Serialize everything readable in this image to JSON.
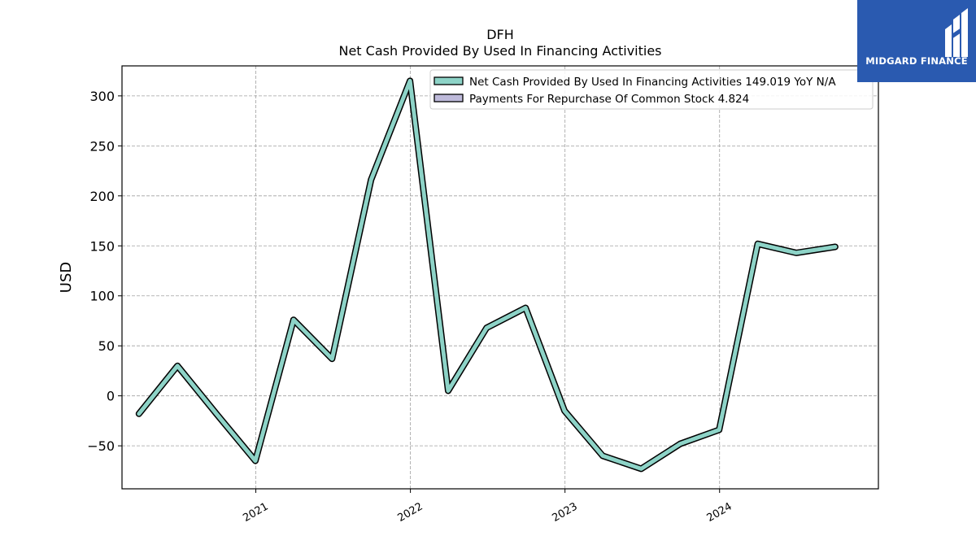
{
  "chart_data": {
    "type": "line",
    "ticker": "DFH",
    "title": "Net Cash Provided By Used In Financing Activities",
    "xlabel": "",
    "ylabel": "USD",
    "ylim": [
      -93,
      330
    ],
    "yticks": [
      -50,
      0,
      50,
      100,
      150,
      200,
      250,
      300
    ],
    "ytick_labels": [
      "−50",
      "0",
      "50",
      "100",
      "150",
      "200",
      "250",
      "300"
    ],
    "xticks": [
      {
        "date": "2021-01-01",
        "label": "2021"
      },
      {
        "date": "2022-01-01",
        "label": "2022"
      },
      {
        "date": "2023-01-01",
        "label": "2023"
      },
      {
        "date": "2024-01-01",
        "label": "2024"
      }
    ],
    "xlim": [
      "2020-02-20",
      "2025-01-10"
    ],
    "grid": true,
    "legend_position": "top-right",
    "series": [
      {
        "name": "Net Cash Provided By Used In Financing Activities",
        "legend_label": "Net Cash Provided By Used In Financing Activities  149.019 YoY N/A",
        "color": "#8dd3c7",
        "points": [
          {
            "x": "2020-03-31",
            "y": -18
          },
          {
            "x": "2020-06-30",
            "y": 30
          },
          {
            "x": "2020-09-30",
            "y": -18
          },
          {
            "x": "2020-12-31",
            "y": -65
          },
          {
            "x": "2021-03-31",
            "y": 76
          },
          {
            "x": "2021-06-30",
            "y": 37
          },
          {
            "x": "2021-09-30",
            "y": 216
          },
          {
            "x": "2021-12-31",
            "y": 315
          },
          {
            "x": "2022-03-31",
            "y": 5
          },
          {
            "x": "2022-06-30",
            "y": 68
          },
          {
            "x": "2022-09-30",
            "y": 88
          },
          {
            "x": "2022-12-31",
            "y": -15
          },
          {
            "x": "2023-03-31",
            "y": -60
          },
          {
            "x": "2023-06-30",
            "y": -73
          },
          {
            "x": "2023-09-30",
            "y": -48
          },
          {
            "x": "2023-12-31",
            "y": -34
          },
          {
            "x": "2024-03-31",
            "y": 152
          },
          {
            "x": "2024-06-30",
            "y": 143
          },
          {
            "x": "2024-09-30",
            "y": 149.019
          }
        ]
      },
      {
        "name": "Payments For Repurchase Of Common Stock",
        "legend_label": "Payments For Repurchase Of Common Stock  4.824",
        "color": "#bebada",
        "points": []
      }
    ]
  },
  "logo": {
    "text": "MIDGARD FINANCE",
    "bg": "#2a5ab0"
  }
}
